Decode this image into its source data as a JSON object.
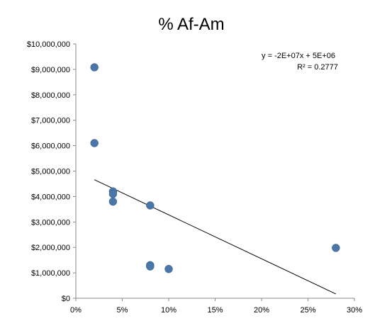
{
  "chart_data": {
    "type": "scatter",
    "title": "% Af-Am",
    "xlabel": "",
    "ylabel": "",
    "xlim": [
      0,
      0.3
    ],
    "ylim": [
      0,
      10000000
    ],
    "x_ticks": [
      0,
      0.05,
      0.1,
      0.15,
      0.2,
      0.25,
      0.3
    ],
    "x_tick_labels": [
      "0%",
      "5%",
      "10%",
      "15%",
      "20%",
      "25%",
      "30%"
    ],
    "y_ticks": [
      0,
      1000000,
      2000000,
      3000000,
      4000000,
      5000000,
      6000000,
      7000000,
      8000000,
      9000000,
      10000000
    ],
    "y_tick_labels": [
      "$0",
      "$1,000,000",
      "$2,000,000",
      "$3,000,000",
      "$4,000,000",
      "$5,000,000",
      "$6,000,000",
      "$7,000,000",
      "$8,000,000",
      "$9,000,000",
      "$10,000,000"
    ],
    "grid": false,
    "points": [
      {
        "x": 0.02,
        "y": 9080000
      },
      {
        "x": 0.02,
        "y": 6100000
      },
      {
        "x": 0.04,
        "y": 4200000
      },
      {
        "x": 0.04,
        "y": 4100000
      },
      {
        "x": 0.04,
        "y": 3800000
      },
      {
        "x": 0.08,
        "y": 3650000
      },
      {
        "x": 0.08,
        "y": 1300000
      },
      {
        "x": 0.08,
        "y": 1250000
      },
      {
        "x": 0.1,
        "y": 1150000
      },
      {
        "x": 0.28,
        "y": 1980000
      }
    ],
    "trendline": {
      "x_start": 0.02,
      "y_start": 4660000,
      "x_end": 0.28,
      "y_end": 170000,
      "equation": "y = -2E+07x + 5E+06",
      "r_squared": "R² = 0.2777"
    },
    "marker_color": "#4a76a8",
    "trendline_color": "#000000"
  }
}
